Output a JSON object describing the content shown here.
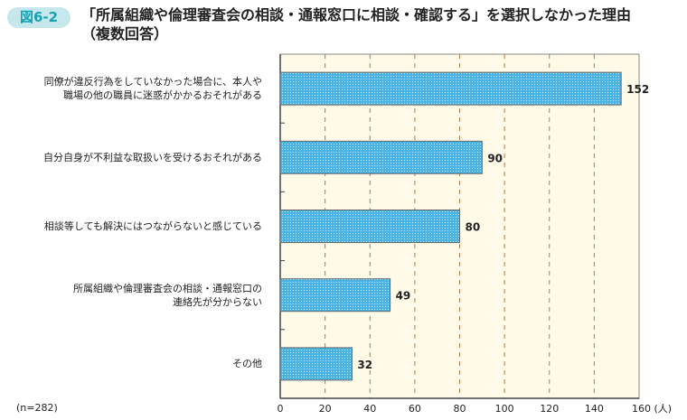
{
  "header": {
    "figure_label": "図6-2",
    "title": "「所属組織や倫理審査会の相談・通報窓口に相談・確認する」を選択しなかった理由\n（複数回答）"
  },
  "note": "(n=282)",
  "chart_data": {
    "type": "bar",
    "orientation": "horizontal",
    "categories": [
      "同僚が違反行為をしていなかった場合に、本人や\n職場の他の職員に迷惑がかかるおそれがある",
      "自分自身が不利益な取扱いを受けるおそれがある",
      "相談等しても解決にはつながらないと感じている",
      "所属組織や倫理審査会の相談・通報窓口の\n連絡先が分からない",
      "その他"
    ],
    "values": [
      152,
      90,
      80,
      49,
      32
    ],
    "xlim": [
      0,
      160
    ],
    "xticks": [
      0,
      20,
      40,
      60,
      80,
      100,
      120,
      140,
      160
    ],
    "xunit": "(人)",
    "grid": true,
    "colors": {
      "bar": "#4ab3e6",
      "plot_bg": "#fffbe8",
      "grid": "#b07a4a"
    }
  }
}
